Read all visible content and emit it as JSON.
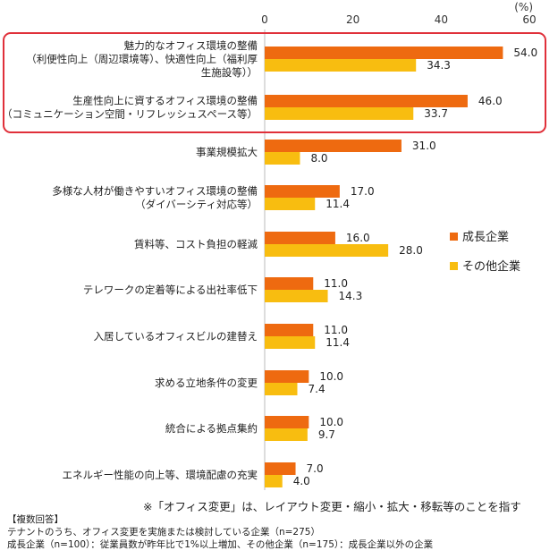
{
  "chart_data": {
    "type": "bar",
    "orientation": "horizontal",
    "unit": "(%)",
    "xlim": [
      0,
      60
    ],
    "ticks": [
      0,
      20,
      40,
      60
    ],
    "categories": [
      [
        "魅力的なオフィス環境の整備",
        "（利便性向上（周辺環境等）、快適性向上（福利厚",
        "生施設等））"
      ],
      [
        "生産性向上に資するオフィス環境の整備",
        "（コミュニケーション空間・リフレッシュスペース等）"
      ],
      [
        "事業規模拡大"
      ],
      [
        "多様な人材が働きやすいオフィス環境の整備",
        "（ダイバーシティ対応等）"
      ],
      [
        "賃料等、コスト負担の軽減"
      ],
      [
        "テレワークの定着等による出社率低下"
      ],
      [
        "入居しているオフィスビルの建替え"
      ],
      [
        "求める立地条件の変更"
      ],
      [
        "統合による拠点集約"
      ],
      [
        "エネルギー性能の向上等、環境配慮の充実"
      ]
    ],
    "series": [
      {
        "name": "成長企業",
        "color": "#ee6a10",
        "values": [
          54.0,
          46.0,
          31.0,
          17.0,
          16.0,
          11.0,
          11.0,
          10.0,
          10.0,
          7.0
        ]
      },
      {
        "name": "その他企業",
        "color": "#f8bd10",
        "values": [
          34.3,
          33.7,
          8.0,
          11.4,
          28.0,
          14.3,
          11.4,
          7.4,
          9.7,
          4.0
        ]
      }
    ],
    "value_labels": [
      [
        "54.0",
        "46.0",
        "31.0",
        "17.0",
        "16.0",
        "11.0",
        "11.0",
        "10.0",
        "10.0",
        "7.0"
      ],
      [
        "34.3",
        "33.7",
        "8.0",
        "11.4",
        "28.0",
        "14.3",
        "11.4",
        "7.4",
        "9.7",
        "4.0"
      ]
    ],
    "highlighted_categories": [
      0,
      1
    ],
    "highlight_color": "#e0303a",
    "grid": false,
    "legend_position": "right"
  },
  "note": "※「オフィス変更」は、レイアウト変更・縮小・拡大・移転等のことを指す",
  "footer": [
    "【複数回答】",
    "テナントのうち、オフィス変更を実施または検討している企業（n=275）",
    "成長企業（n=100）：従業員数が昨年比で1%以上増加、その他企業（n=175）：成長企業以外の企業"
  ]
}
